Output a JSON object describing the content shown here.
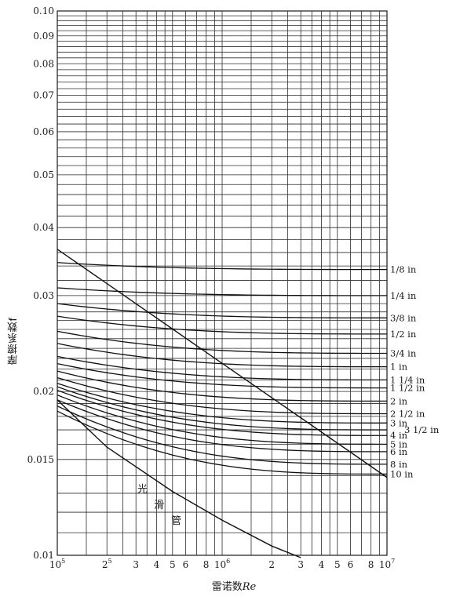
{
  "chart_data": {
    "type": "line",
    "title": "",
    "xlabel_prefix": "雷诺数",
    "xlabel_var": "Re",
    "ylabel": "摩擦系数f",
    "x_scale": "log",
    "y_scale": "log",
    "xlim": [
      100000,
      10000000
    ],
    "ylim": [
      0.01,
      0.1
    ],
    "grid": true,
    "x_ticks": [
      {
        "value": 100000,
        "base": "10",
        "exp": "5"
      },
      {
        "value": 200000,
        "base": "2",
        "exp": "5"
      },
      {
        "value": 300000,
        "base": "3",
        "exp": ""
      },
      {
        "value": 400000,
        "base": "4",
        "exp": ""
      },
      {
        "value": 500000,
        "base": "5",
        "exp": ""
      },
      {
        "value": 600000,
        "base": "6",
        "exp": ""
      },
      {
        "value": 800000,
        "base": "8",
        "exp": ""
      },
      {
        "value": 1000000,
        "base": "10",
        "exp": "6"
      },
      {
        "value": 2000000,
        "base": "2",
        "exp": ""
      },
      {
        "value": 3000000,
        "base": "3",
        "exp": ""
      },
      {
        "value": 4000000,
        "base": "4",
        "exp": ""
      },
      {
        "value": 5000000,
        "base": "5",
        "exp": ""
      },
      {
        "value": 6000000,
        "base": "6",
        "exp": ""
      },
      {
        "value": 8000000,
        "base": "8",
        "exp": ""
      },
      {
        "value": 10000000,
        "base": "10",
        "exp": "7"
      }
    ],
    "y_ticks": [
      {
        "value": 0.01,
        "label": "0.01"
      },
      {
        "value": 0.015,
        "label": "0.015"
      },
      {
        "value": 0.02,
        "label": "0.02"
      },
      {
        "value": 0.03,
        "label": "0.03"
      },
      {
        "value": 0.04,
        "label": "0.04"
      },
      {
        "value": 0.05,
        "label": "0.05"
      },
      {
        "value": 0.06,
        "label": "0.06"
      },
      {
        "value": 0.07,
        "label": "0.07"
      },
      {
        "value": 0.08,
        "label": "0.08"
      },
      {
        "value": 0.09,
        "label": "0.09"
      },
      {
        "value": 0.1,
        "label": "0.10"
      }
    ],
    "x_minor_grid": [
      150000,
      200000,
      250000,
      300000,
      350000,
      400000,
      450000,
      500000,
      600000,
      700000,
      800000,
      900000,
      1000000,
      1500000,
      2000000,
      2500000,
      3000000,
      3500000,
      4000000,
      4500000,
      5000000,
      6000000,
      7000000,
      8000000,
      9000000
    ],
    "y_minor_grid": [
      0.011,
      0.012,
      0.013,
      0.014,
      0.015,
      0.016,
      0.017,
      0.018,
      0.019,
      0.02,
      0.021,
      0.022,
      0.023,
      0.024,
      0.025,
      0.026,
      0.027,
      0.028,
      0.029,
      0.03,
      0.032,
      0.034,
      0.036,
      0.038,
      0.04,
      0.042,
      0.044,
      0.046,
      0.048,
      0.05,
      0.052,
      0.054,
      0.056,
      0.058,
      0.06,
      0.062,
      0.064,
      0.066,
      0.068,
      0.07,
      0.072,
      0.074,
      0.076,
      0.078,
      0.08,
      0.082,
      0.084,
      0.086,
      0.088,
      0.09,
      0.092,
      0.094,
      0.096,
      0.098
    ],
    "series": [
      {
        "name": "1/8 in",
        "label": "1/8 in",
        "f_start": 0.0345,
        "f_end": 0.0335
      },
      {
        "name": "1/4 in",
        "label": "1/4 in",
        "f_start": 0.031,
        "f_end": 0.03
      },
      {
        "name": "3/8 in",
        "label": "3/8 in",
        "f_start": 0.029,
        "f_end": 0.0273
      },
      {
        "name": "1/2 in",
        "label": "1/2 in",
        "f_start": 0.0275,
        "f_end": 0.0255
      },
      {
        "name": "3/4 in",
        "label": "3/4 in",
        "f_start": 0.0258,
        "f_end": 0.0235
      },
      {
        "name": "1 in",
        "label": "1 in",
        "f_start": 0.0245,
        "f_end": 0.0222
      },
      {
        "name": "1 1/4 in",
        "label": "1 1/4 in",
        "f_start": 0.0232,
        "f_end": 0.021
      },
      {
        "name": "1 1/2 in",
        "label": "1 1/2 in",
        "f_start": 0.0225,
        "f_end": 0.0203
      },
      {
        "name": "2 in",
        "label": "2 in",
        "f_start": 0.0218,
        "f_end": 0.0192
      },
      {
        "name": "2 1/2 in",
        "label": "2 1/2 in",
        "f_start": 0.0212,
        "f_end": 0.0182
      },
      {
        "name": "3 in",
        "label": "3 in",
        "f_start": 0.0207,
        "f_end": 0.0175
      },
      {
        "name": "3 1/2 in",
        "label": "3 1/2 in",
        "f_start": 0.0204,
        "f_end": 0.017
      },
      {
        "name": "4 in",
        "label": "4 in",
        "f_start": 0.0201,
        "f_end": 0.0166
      },
      {
        "name": "5 in",
        "label": "5 in",
        "f_start": 0.0197,
        "f_end": 0.016
      },
      {
        "name": "6 in",
        "label": "6 in",
        "f_start": 0.0193,
        "f_end": 0.0155
      },
      {
        "name": "8 in",
        "label": "8 in",
        "f_start": 0.0188,
        "f_end": 0.0147
      },
      {
        "name": "10 in",
        "label": "10 in",
        "f_start": 0.0184,
        "f_end": 0.0141
      }
    ],
    "smooth_pipe": {
      "label_chars": [
        "光",
        "滑",
        "管"
      ],
      "points": [
        [
          100000,
          0.0193
        ],
        [
          200000,
          0.0158
        ],
        [
          500000,
          0.0131
        ],
        [
          1000000,
          0.0116
        ],
        [
          2000000,
          0.0104
        ],
        [
          3000000,
          0.0099
        ]
      ]
    },
    "transition_line": {
      "points": [
        [
          100000,
          0.0365
        ],
        [
          10000000,
          0.0139
        ]
      ]
    }
  }
}
